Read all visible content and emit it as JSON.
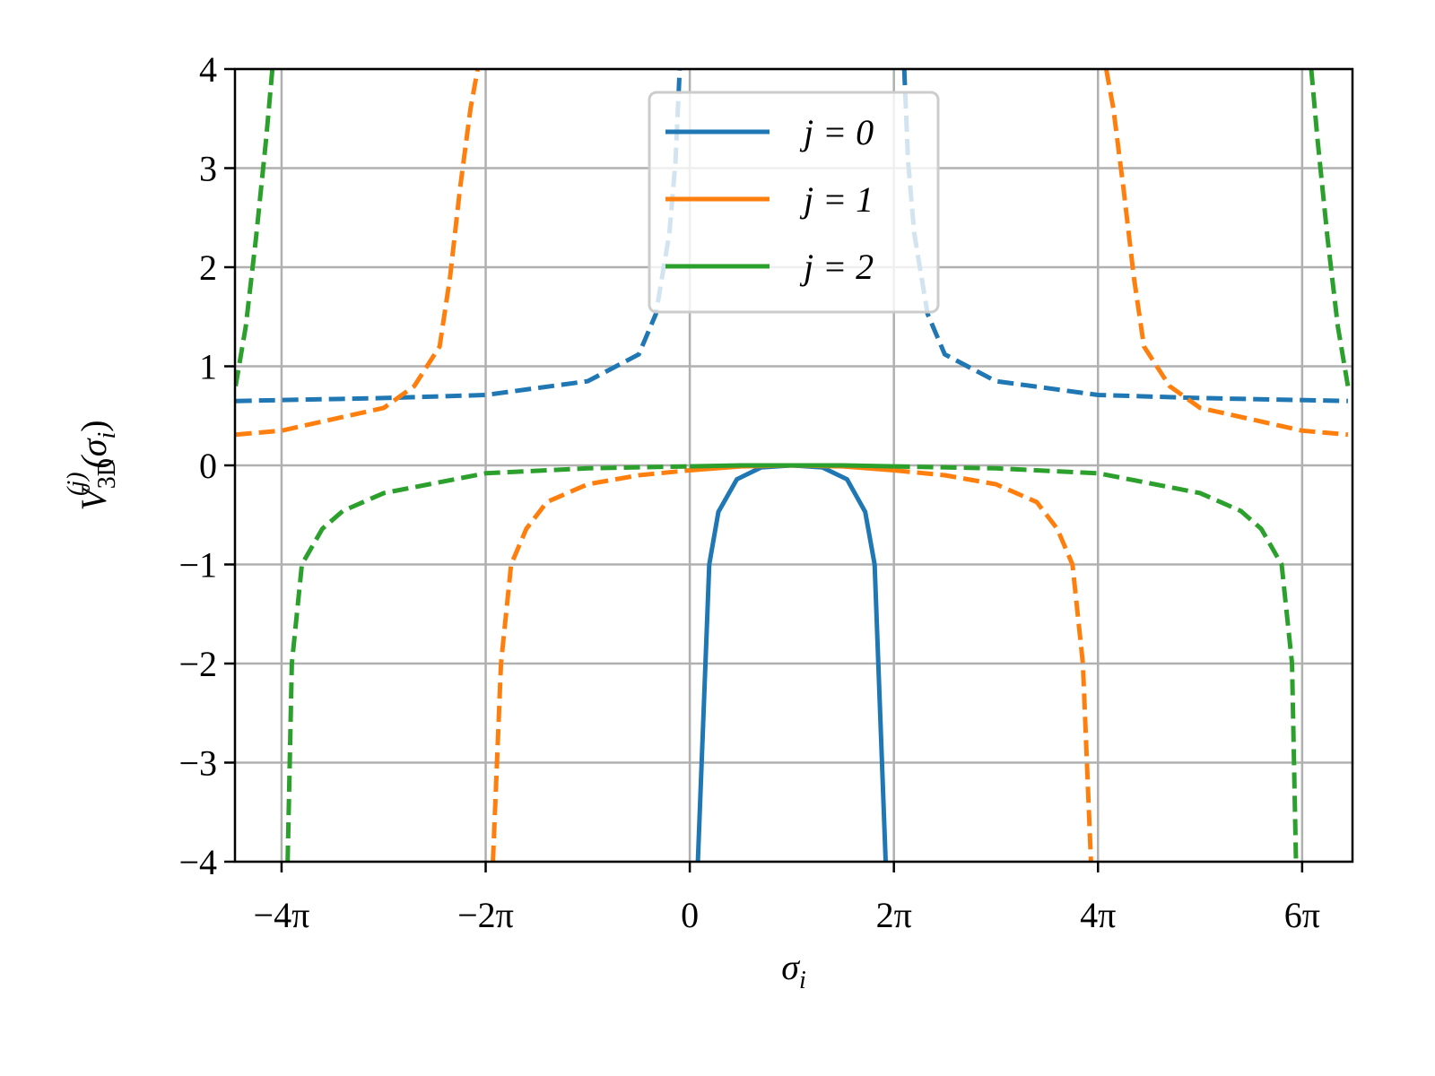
{
  "chart_data": {
    "type": "line",
    "x_label": {
      "symbol": "σ",
      "subscript": "i"
    },
    "y_label": {
      "symbol": "V",
      "subscript": "3D",
      "superscript": "(j)",
      "argument": "(σ",
      "argument_subscript": "i",
      "argument_close": ")"
    },
    "xlim": [
      -14,
      20.4
    ],
    "ylim": [
      -4,
      4
    ],
    "xticks": [
      {
        "value": -12.566,
        "label": "−4π"
      },
      {
        "value": -6.283,
        "label": "−2π"
      },
      0,
      {
        "value": 6.283,
        "label": "2π"
      },
      {
        "value": 12.566,
        "label": "4π"
      },
      {
        "value": 18.85,
        "label": "6π"
      }
    ],
    "yticks": [
      {
        "value": -4,
        "label": "−4"
      },
      {
        "value": -3,
        "label": "−3"
      },
      {
        "value": -2,
        "label": "−2"
      },
      {
        "value": -1,
        "label": "−1"
      },
      0,
      1,
      2,
      3,
      4
    ],
    "grid": true,
    "legend": "upper center",
    "series": [
      {
        "name": "j = 0",
        "color": "#1f77b4",
        "x": [
          -13.98,
          -9.42,
          -6.28,
          -3.14,
          -1.57,
          -1.04,
          -0.63,
          -0.44,
          -0.31,
          0.25,
          0.6,
          0.88,
          1.45,
          2.2,
          3.14,
          4.08,
          4.84,
          5.4,
          5.69,
          6.03,
          6.6,
          6.72,
          6.91,
          7.32,
          7.85,
          9.42,
          12.57,
          15.71,
          20.26
        ],
        "values": [
          null,
          null,
          null,
          null,
          null,
          null,
          null,
          null,
          null,
          -4,
          -1,
          -0.47,
          -0.14,
          -0.02,
          0,
          -0.02,
          -0.14,
          -0.47,
          -1,
          -4,
          null,
          null,
          null,
          null,
          null,
          null,
          null,
          null,
          null
        ],
        "dashed_values": [
          0.65,
          0.68,
          0.71,
          0.85,
          1.12,
          1.53,
          2.34,
          3.07,
          4,
          null,
          null,
          null,
          null,
          null,
          null,
          null,
          null,
          null,
          null,
          null,
          4,
          3.07,
          2.34,
          1.53,
          1.12,
          0.85,
          0.71,
          0.68,
          0.65
        ]
      },
      {
        "name": "j = 1",
        "color": "#ff7f0e",
        "x": [
          -13.98,
          -12.57,
          -9.42,
          -8.48,
          -7.7,
          -7.38,
          -7.07,
          -6.75,
          -6.53,
          -6.28,
          -6.06,
          -5.81,
          -5.5,
          -5.03,
          -4.4,
          -3.14,
          -1.57,
          0,
          1.57,
          3.14,
          4.71,
          6.28,
          7.85,
          9.42,
          10.68,
          11.31,
          11.78,
          12.1,
          12.35,
          12.57,
          12.82,
          13.04,
          13.35,
          13.67,
          13.98,
          14.77,
          15.71,
          18.85,
          20.26
        ],
        "values": [
          null,
          null,
          null,
          null,
          null,
          null,
          null,
          null,
          null,
          null,
          null,
          null,
          null,
          null,
          null,
          null,
          null,
          -0.05,
          -0.01,
          0,
          -0.01,
          -0.05,
          null,
          null,
          null,
          null,
          null,
          null,
          null,
          null,
          null,
          null,
          null,
          null,
          null,
          null,
          null,
          null,
          null
        ],
        "dashed_values": [
          0.31,
          0.35,
          0.58,
          0.8,
          1.2,
          1.9,
          2.8,
          3.6,
          4,
          null,
          -4,
          -2,
          -1,
          -0.64,
          -0.37,
          -0.19,
          -0.1,
          -0.05,
          null,
          null,
          null,
          -0.05,
          -0.1,
          -0.19,
          -0.37,
          -0.64,
          -1,
          -2,
          -4,
          null,
          4,
          3.6,
          2.8,
          1.9,
          1.2,
          0.8,
          0.58,
          0.35,
          0.31
        ]
      },
      {
        "name": "j = 2",
        "color": "#2ca02c",
        "x": [
          -13.98,
          -13.67,
          -13.35,
          -13.04,
          -12.85,
          -12.57,
          -12.38,
          -12.25,
          -11.94,
          -11.31,
          -10.68,
          -9.42,
          -6.28,
          -3.14,
          0,
          1.57,
          3.14,
          4.71,
          6.28,
          9.42,
          12.57,
          15.71,
          16.96,
          17.59,
          18.22,
          18.54,
          18.66,
          18.85,
          19.13,
          19.32,
          19.63,
          19.95,
          20.26
        ],
        "values": [
          null,
          null,
          null,
          null,
          null,
          null,
          null,
          null,
          null,
          null,
          null,
          null,
          null,
          null,
          -0.01,
          0,
          0,
          0,
          -0.01,
          null,
          null,
          null,
          null,
          null,
          null,
          null,
          null,
          null,
          null,
          null,
          null,
          null,
          null
        ],
        "dashed_values": [
          0.8,
          1.4,
          2.3,
          3.3,
          4,
          null,
          -4,
          -2,
          -1,
          -0.64,
          -0.46,
          -0.28,
          -0.08,
          -0.03,
          -0.01,
          null,
          null,
          null,
          -0.01,
          -0.03,
          -0.08,
          -0.28,
          -0.46,
          -0.64,
          -1,
          -2,
          -4,
          null,
          4,
          3.3,
          2.3,
          1.4,
          0.8
        ]
      }
    ]
  }
}
